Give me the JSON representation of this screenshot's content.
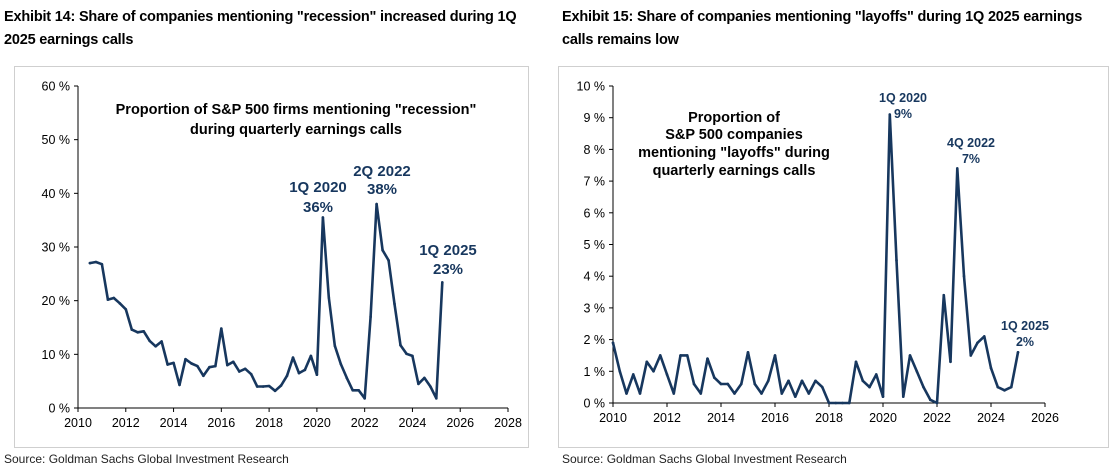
{
  "colors": {
    "series": "#17375E",
    "panel_border": "#CFCFCF",
    "axis": "#000000"
  },
  "exhibits": [
    {
      "title_lines": [
        "Exhibit 14: Share of companies mentioning \"recession\" increased during 1Q",
        "2025 earnings calls"
      ],
      "source": "Source: Goldman Sachs Global Investment Research"
    },
    {
      "title_lines": [
        "Exhibit 15: Share of companies mentioning \"layoffs\" during 1Q 2025 earnings",
        "calls remains low"
      ],
      "source": "Source: Goldman Sachs Global Investment Research"
    }
  ],
  "chart_data": [
    {
      "type": "line",
      "title": "Proportion of S&P 500 firms mentioning \"recession\" during quarterly earnings calls",
      "title_lines": [
        "Proportion of S&P 500 firms mentioning \"recession\"",
        "during quarterly earnings calls"
      ],
      "xlabel": "",
      "ylabel": "",
      "xlim": [
        2010,
        2028
      ],
      "ylim": [
        0,
        60
      ],
      "xticks": [
        2010,
        2012,
        2014,
        2016,
        2018,
        2020,
        2022,
        2024,
        2026,
        2028
      ],
      "yticks": [
        0,
        10,
        20,
        30,
        40,
        50,
        60
      ],
      "ytick_suffix": " %",
      "grid": false,
      "series": [
        {
          "name": "Share mentioning recession",
          "x": [
            2010.5,
            2010.75,
            2011,
            2011.25,
            2011.5,
            2011.75,
            2012,
            2012.25,
            2012.5,
            2012.75,
            2013,
            2013.25,
            2013.5,
            2013.75,
            2014,
            2014.25,
            2014.5,
            2014.75,
            2015,
            2015.25,
            2015.5,
            2015.75,
            2016,
            2016.25,
            2016.5,
            2016.75,
            2017,
            2017.25,
            2017.5,
            2017.75,
            2018,
            2018.25,
            2018.5,
            2018.75,
            2019,
            2019.25,
            2019.5,
            2019.75,
            2020,
            2020.25,
            2020.5,
            2020.75,
            2021,
            2021.25,
            2021.5,
            2021.75,
            2022,
            2022.25,
            2022.5,
            2022.75,
            2023,
            2023.25,
            2023.5,
            2023.75,
            2024,
            2024.25,
            2024.5,
            2024.75,
            2025,
            2025.25
          ],
          "values": [
            27,
            27.2,
            26.8,
            20.2,
            20.5,
            19.5,
            18.4,
            14.6,
            14.1,
            14.3,
            12.5,
            11.5,
            12.4,
            8.1,
            8.4,
            4.3,
            9.1,
            8.3,
            7.8,
            6.0,
            7.6,
            7.8,
            14.8,
            8.0,
            8.6,
            6.8,
            7.3,
            6.3,
            4.0,
            4.0,
            4.1,
            3.2,
            4.2,
            6.0,
            9.4,
            6.5,
            7.1,
            9.7,
            6.2,
            35.5,
            20.6,
            11.6,
            8.2,
            5.6,
            3.3,
            3.3,
            1.8,
            17.0,
            38.0,
            29.4,
            27.5,
            19.4,
            11.7,
            10.1,
            9.7,
            4.5,
            5.6,
            4.0,
            1.8,
            23.4
          ]
        }
      ],
      "annotations": [
        {
          "label": "1Q 2020",
          "value_text": "36%"
        },
        {
          "label": "2Q 2022",
          "value_text": "38%"
        },
        {
          "label": "1Q 2025",
          "value_text": "23%"
        }
      ]
    },
    {
      "type": "line",
      "title": "Proportion of S&P 500 companies mentioning \"layoffs\" during quarterly earnings calls",
      "title_lines": [
        "Proportion of",
        "S&P 500 companies",
        "mentioning \"layoffs\" during",
        "quarterly earnings calls"
      ],
      "xlabel": "",
      "ylabel": "",
      "xlim": [
        2010,
        2026
      ],
      "ylim": [
        0,
        10
      ],
      "xticks": [
        2010,
        2012,
        2014,
        2016,
        2018,
        2020,
        2022,
        2024,
        2026
      ],
      "yticks": [
        0,
        1,
        2,
        3,
        4,
        5,
        6,
        7,
        8,
        9,
        10
      ],
      "ytick_suffix": " %",
      "grid": false,
      "series": [
        {
          "name": "Share mentioning layoffs",
          "x": [
            2010,
            2010.25,
            2010.5,
            2010.75,
            2011,
            2011.25,
            2011.5,
            2011.75,
            2012,
            2012.25,
            2012.5,
            2012.75,
            2013,
            2013.25,
            2013.5,
            2013.75,
            2014,
            2014.25,
            2014.5,
            2014.75,
            2015,
            2015.25,
            2015.5,
            2015.75,
            2016,
            2016.25,
            2016.5,
            2016.75,
            2017,
            2017.25,
            2017.5,
            2017.75,
            2018,
            2018.25,
            2018.5,
            2018.75,
            2019,
            2019.25,
            2019.5,
            2019.75,
            2020,
            2020.25,
            2020.5,
            2020.75,
            2021,
            2021.25,
            2021.5,
            2021.75,
            2022,
            2022.25,
            2022.5,
            2022.75,
            2023,
            2023.25,
            2023.5,
            2023.75,
            2024,
            2024.25,
            2024.5,
            2024.75,
            2025
          ],
          "values": [
            1.9,
            1.0,
            0.3,
            0.9,
            0.3,
            1.3,
            1.0,
            1.5,
            0.9,
            0.3,
            1.5,
            1.5,
            0.6,
            0.3,
            1.4,
            0.8,
            0.6,
            0.6,
            0.3,
            0.6,
            1.6,
            0.6,
            0.3,
            0.7,
            1.5,
            0.3,
            0.7,
            0.2,
            0.7,
            0.3,
            0.7,
            0.5,
            0,
            0,
            0,
            0,
            1.3,
            0.7,
            0.5,
            0.9,
            0.2,
            9.1,
            4.5,
            0.2,
            1.5,
            1.0,
            0.5,
            0.1,
            0,
            3.4,
            1.3,
            7.4,
            4.0,
            1.5,
            1.9,
            2.1,
            1.1,
            0.5,
            0.4,
            0.5,
            1.6
          ]
        }
      ],
      "annotations": [
        {
          "label": "1Q 2020",
          "value_text": "9%"
        },
        {
          "label": "4Q 2022",
          "value_text": "7%"
        },
        {
          "label": "1Q 2025",
          "value_text": "2%"
        }
      ]
    }
  ]
}
